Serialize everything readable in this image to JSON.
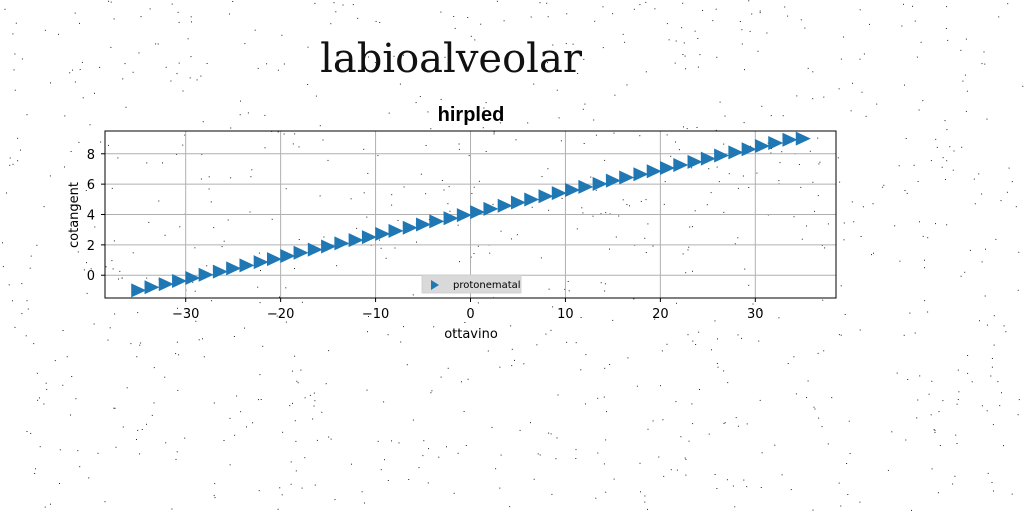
{
  "page_title": "labioalveolar",
  "chart_data": {
    "type": "scatter",
    "title": "hirpled",
    "xlabel": "ottavino",
    "ylabel": "cotangent",
    "xlim": [
      -38.5,
      38.5
    ],
    "ylim": [
      -1.5,
      9.5
    ],
    "xticks": [
      -30,
      -20,
      -10,
      0,
      10,
      20,
      30
    ],
    "xtick_labels": [
      "−30",
      "−20",
      "−10",
      "0",
      "10",
      "20",
      "30"
    ],
    "yticks": [
      0,
      2,
      4,
      6,
      8
    ],
    "ytick_labels": [
      "0",
      "2",
      "4",
      "6",
      "8"
    ],
    "grid": true,
    "legend_position": "lower-center",
    "marker": "triangle-right",
    "color": "#1f77b4",
    "series": [
      {
        "name": "protonematal",
        "x": [
          -35.0,
          -33.6,
          -32.1,
          -30.7,
          -29.3,
          -27.9,
          -26.4,
          -25.0,
          -23.6,
          -22.1,
          -20.7,
          -19.3,
          -17.9,
          -16.4,
          -15.0,
          -13.6,
          -12.1,
          -10.7,
          -9.3,
          -7.9,
          -6.4,
          -5.0,
          -3.6,
          -2.1,
          -0.7,
          0.7,
          2.1,
          3.6,
          5.0,
          6.4,
          7.9,
          9.3,
          10.7,
          12.1,
          13.6,
          15.0,
          16.4,
          17.9,
          19.3,
          20.7,
          22.1,
          23.6,
          25.0,
          26.4,
          27.9,
          29.3,
          30.7,
          32.1,
          33.6,
          35.0
        ],
        "y": [
          -1.0,
          -0.79,
          -0.59,
          -0.38,
          -0.18,
          0.03,
          0.24,
          0.45,
          0.65,
          0.86,
          1.06,
          1.27,
          1.48,
          1.69,
          1.89,
          2.1,
          2.31,
          2.51,
          2.72,
          2.92,
          3.13,
          3.34,
          3.55,
          3.75,
          3.96,
          4.16,
          4.37,
          4.58,
          4.79,
          4.99,
          5.2,
          5.41,
          5.61,
          5.82,
          6.02,
          6.23,
          6.44,
          6.65,
          6.85,
          7.06,
          7.26,
          7.47,
          7.68,
          7.89,
          8.09,
          8.3,
          8.51,
          8.71,
          8.92,
          9.0
        ]
      }
    ]
  }
}
